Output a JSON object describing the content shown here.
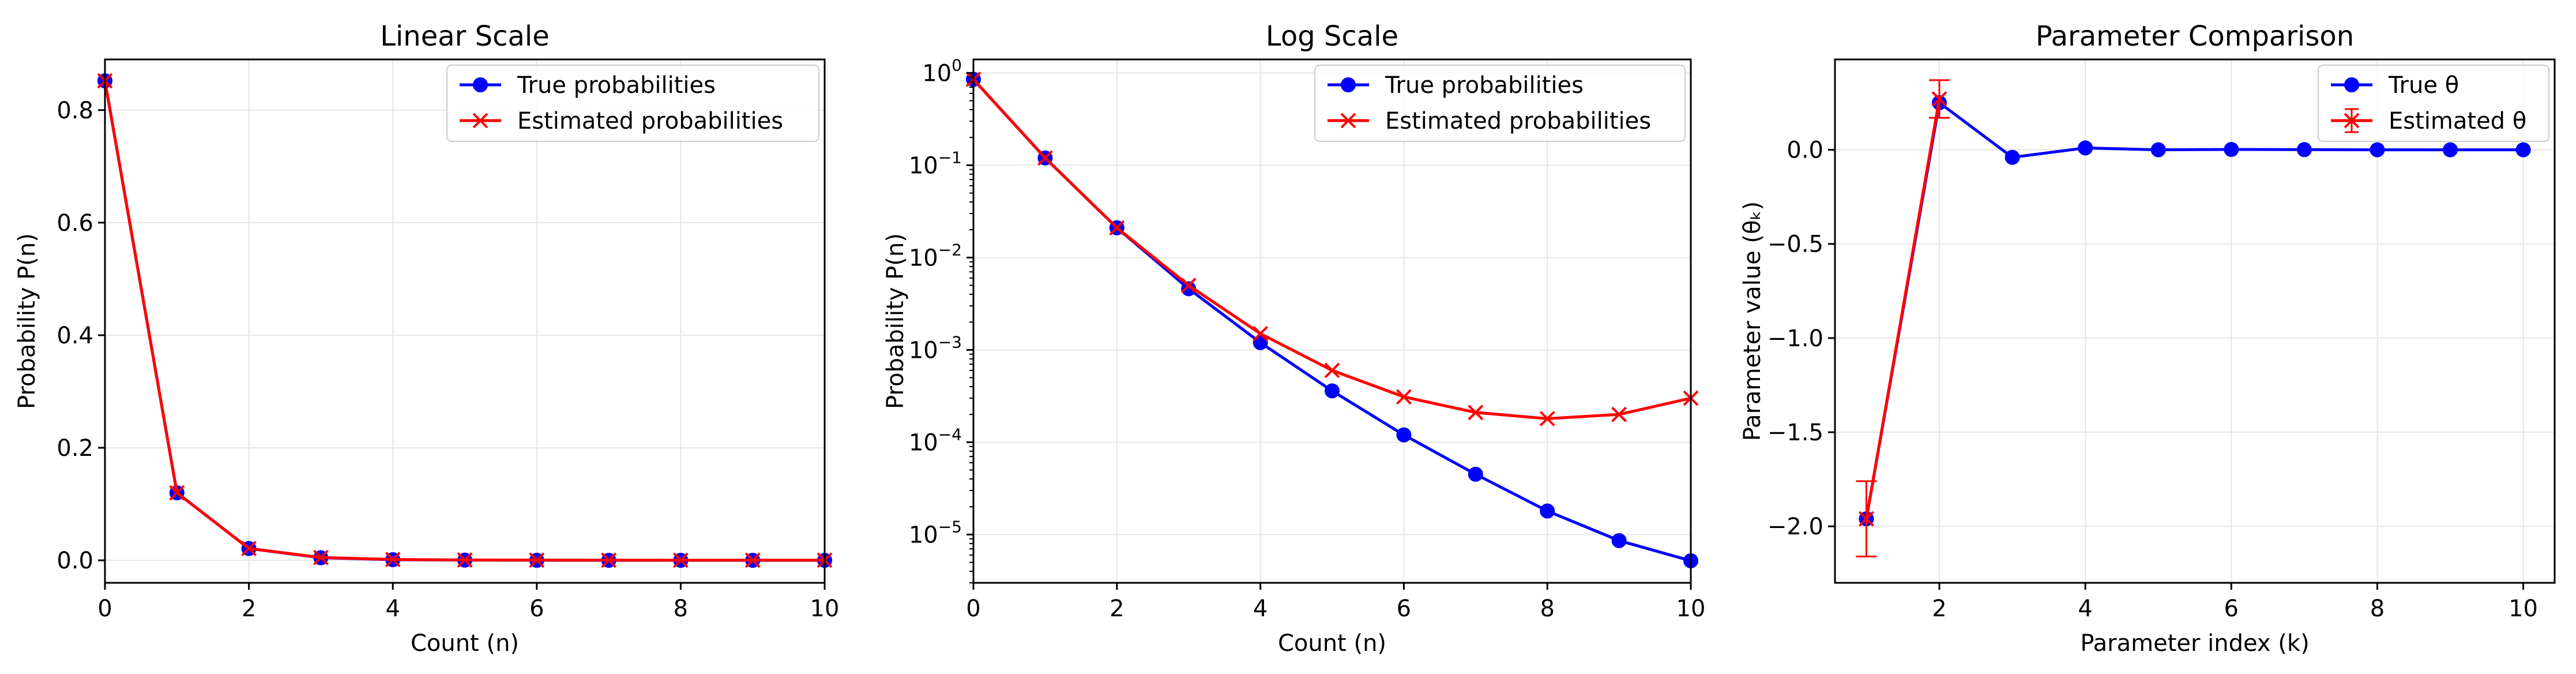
{
  "figure": {
    "background": "#ffffff"
  },
  "colors": {
    "true_series": "#0000ff",
    "estimated_series": "#ff0000",
    "grid": "#e6e6e6",
    "axis": "#000000"
  },
  "chart_data": [
    {
      "type": "line",
      "title": "Linear Scale",
      "xlabel": "Count (n)",
      "ylabel": "Probability P(n)",
      "xscale": "linear",
      "yscale": "linear",
      "xlim": [
        0,
        10
      ],
      "ylim": [
        -0.04,
        0.89
      ],
      "xticks": [
        0,
        2,
        4,
        6,
        8,
        10
      ],
      "xtick_labels": [
        "0",
        "2",
        "4",
        "6",
        "8",
        "10"
      ],
      "yticks": [
        0.0,
        0.2,
        0.4,
        0.6,
        0.8
      ],
      "ytick_labels": [
        "0.0",
        "0.2",
        "0.4",
        "0.6",
        "0.8"
      ],
      "grid": true,
      "legend": "top-right",
      "x": [
        0,
        1,
        2,
        3,
        4,
        5,
        6,
        7,
        8,
        9,
        10
      ],
      "series": [
        {
          "name": "True probabilities",
          "marker": "circle",
          "color": "#0000ff",
          "values": [
            0.852,
            0.12,
            0.021,
            0.0046,
            0.0012,
            0.00036,
            0.00012,
            4.5e-05,
            1.8e-05,
            8.6e-06,
            5.2e-06
          ]
        },
        {
          "name": "Estimated probabilities",
          "marker": "x",
          "color": "#ff0000",
          "values": [
            0.852,
            0.12,
            0.021,
            0.005,
            0.0015,
            0.0006,
            0.00031,
            0.00021,
            0.00018,
            0.0002,
            0.0003
          ]
        }
      ]
    },
    {
      "type": "line",
      "title": "Log Scale",
      "xlabel": "Count (n)",
      "ylabel": "Probability P(n)",
      "xscale": "linear",
      "yscale": "log",
      "xlim": [
        0,
        10
      ],
      "ylim": [
        3e-06,
        1.4
      ],
      "xticks": [
        0,
        2,
        4,
        6,
        8,
        10
      ],
      "xtick_labels": [
        "0",
        "2",
        "4",
        "6",
        "8",
        "10"
      ],
      "yticks": [
        1,
        0.1,
        0.01,
        0.001,
        0.0001,
        1e-05
      ],
      "ytick_labels": [
        {
          "base": "10",
          "exp": "0"
        },
        {
          "base": "10",
          "exp": "−1"
        },
        {
          "base": "10",
          "exp": "−2"
        },
        {
          "base": "10",
          "exp": "−3"
        },
        {
          "base": "10",
          "exp": "−4"
        },
        {
          "base": "10",
          "exp": "−5"
        }
      ],
      "grid": true,
      "legend": "top-right",
      "x": [
        0,
        1,
        2,
        3,
        4,
        5,
        6,
        7,
        8,
        9,
        10
      ],
      "series": [
        {
          "name": "True probabilities",
          "marker": "circle",
          "color": "#0000ff",
          "values": [
            0.852,
            0.12,
            0.021,
            0.0046,
            0.0012,
            0.00036,
            0.00012,
            4.5e-05,
            1.8e-05,
            8.6e-06,
            5.2e-06
          ]
        },
        {
          "name": "Estimated probabilities",
          "marker": "x",
          "color": "#ff0000",
          "values": [
            0.852,
            0.12,
            0.021,
            0.005,
            0.0015,
            0.0006,
            0.00031,
            0.00021,
            0.00018,
            0.0002,
            0.0003
          ]
        }
      ]
    },
    {
      "type": "line",
      "title": "Parameter Comparison",
      "xlabel": "Parameter index (k)",
      "ylabel": "Parameter value (θₖ)",
      "xscale": "linear",
      "yscale": "linear",
      "xlim": [
        0.57,
        10.43
      ],
      "ylim": [
        -2.3,
        0.48
      ],
      "xticks": [
        2,
        4,
        6,
        8,
        10
      ],
      "xtick_labels": [
        "2",
        "4",
        "6",
        "8",
        "10"
      ],
      "yticks": [
        0.0,
        -0.5,
        -1.0,
        -1.5,
        -2.0
      ],
      "ytick_labels": [
        "0.0",
        "−0.5",
        "−1.0",
        "−1.5",
        "−2.0"
      ],
      "grid": true,
      "legend": "top-right",
      "x": [
        1,
        2,
        3,
        4,
        5,
        6,
        7,
        8,
        9,
        10
      ],
      "series": [
        {
          "name": "True θ",
          "marker": "circle",
          "color": "#0000ff",
          "values": [
            -1.96,
            0.25,
            -0.04,
            0.01,
            0.0,
            0.002,
            0.001,
            0.0,
            0.0,
            0.0
          ]
        },
        {
          "name": "Estimated θ",
          "marker": "x",
          "color": "#ff0000",
          "x": [
            1,
            2
          ],
          "values": [
            -1.96,
            0.27
          ],
          "errors": [
            0.2,
            0.1
          ]
        }
      ]
    }
  ]
}
